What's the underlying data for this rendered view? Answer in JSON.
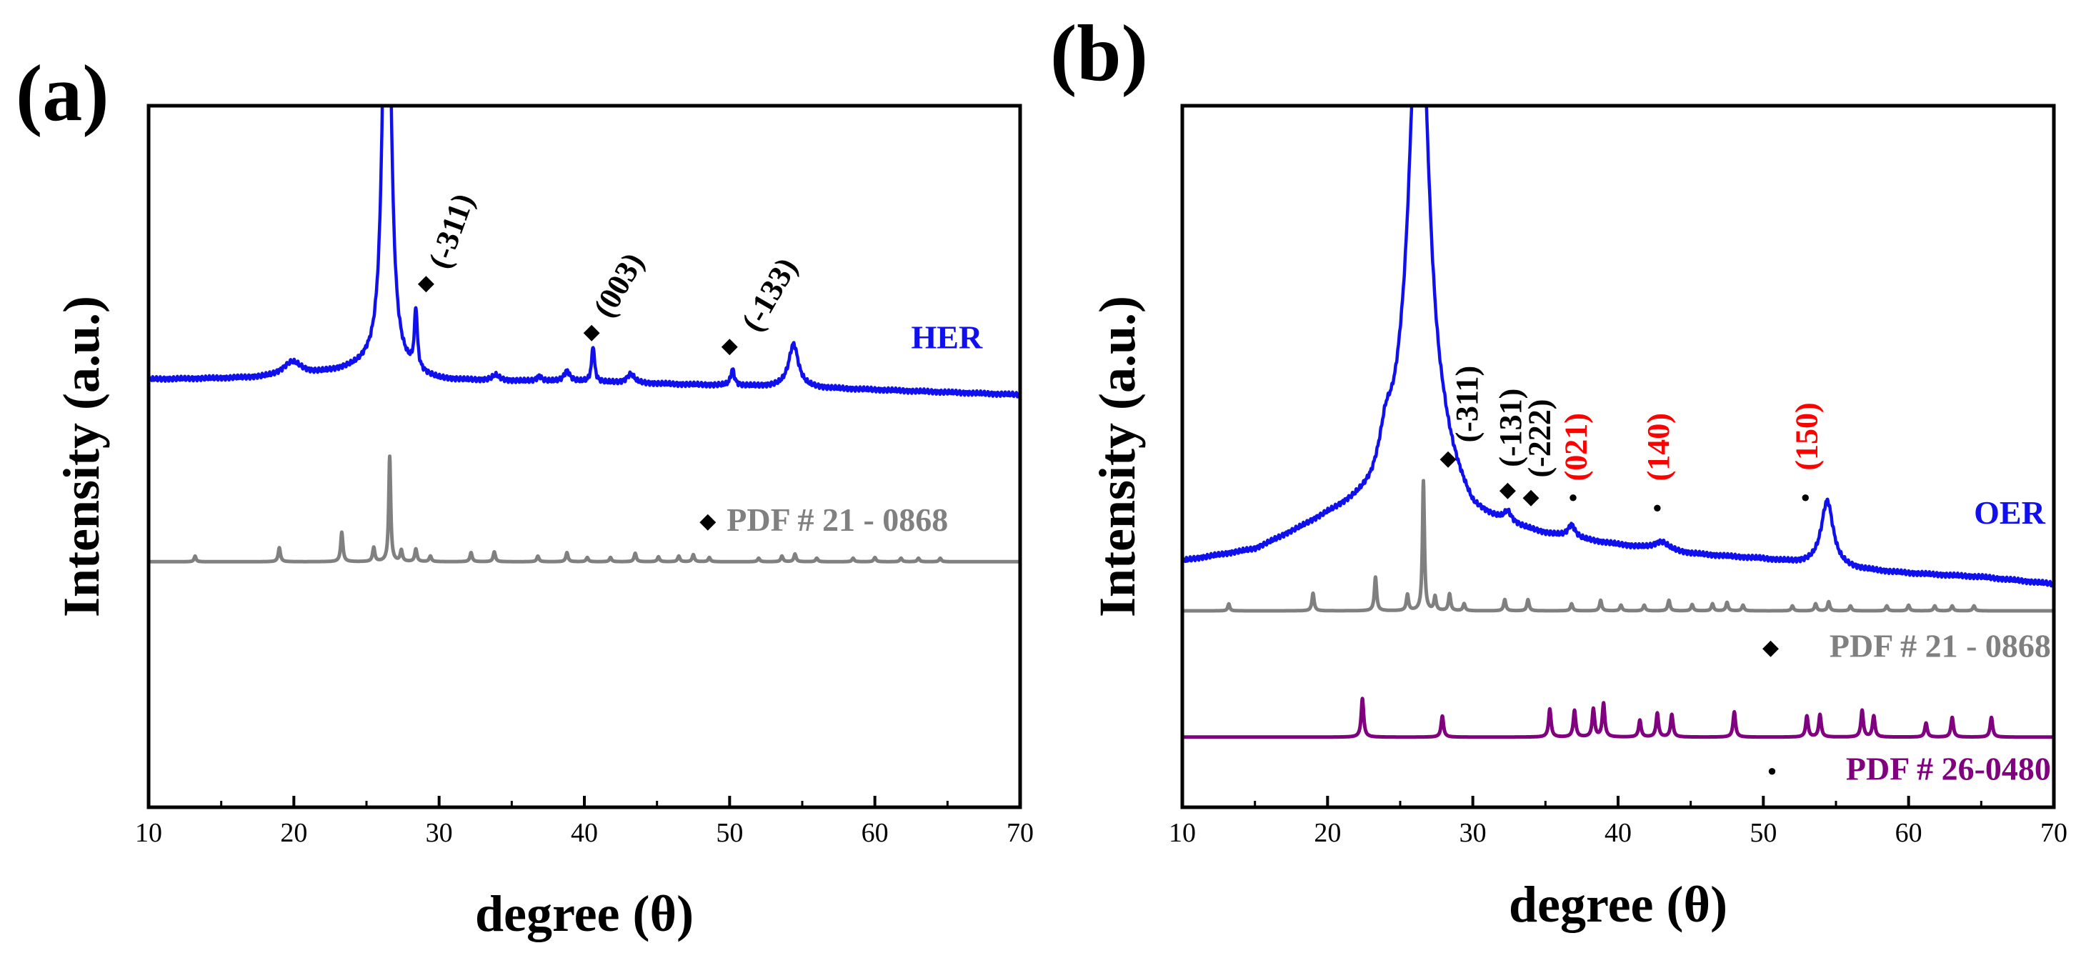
{
  "chart_data": [
    {
      "panel": "(a)",
      "type": "line",
      "xlabel": "degree (θ)",
      "ylabel": "Intensity (a.u.)",
      "xlim": [
        10,
        70
      ],
      "xticks": [
        10,
        20,
        30,
        40,
        50,
        60,
        70
      ],
      "xtick_labels": [
        "10",
        "20",
        "30",
        "40",
        "50",
        "60",
        "70"
      ],
      "ylim": [
        0,
        100
      ],
      "yticks_shown": false,
      "colors": {
        "HER": "#1010ee",
        "PDF 21-0868": "#808080",
        "marker": "#000000"
      },
      "series": [
        {
          "name": "HER",
          "label": "HER",
          "style": "xrd-profile",
          "baseline": [
            [
              10,
              61.0
            ],
            [
              20,
              61.2
            ],
            [
              25,
              62.5
            ],
            [
              30,
              60.8
            ],
            [
              40,
              60.6
            ],
            [
              50,
              60.1
            ],
            [
              60,
              59.5
            ],
            [
              70,
              58.8
            ]
          ],
          "peaks": [
            {
              "x": 19.9,
              "h": 2.2,
              "w": 0.8
            },
            {
              "x": 26.4,
              "h": 85,
              "w": 0.28
            },
            {
              "x": 28.4,
              "h": 8.5,
              "w": 0.12
            },
            {
              "x": 33.9,
              "h": 0.8,
              "w": 0.3
            },
            {
              "x": 36.9,
              "h": 0.7,
              "w": 0.2
            },
            {
              "x": 38.8,
              "h": 1.5,
              "w": 0.25
            },
            {
              "x": 40.6,
              "h": 5.2,
              "w": 0.12
            },
            {
              "x": 43.2,
              "h": 1.3,
              "w": 0.3
            },
            {
              "x": 50.2,
              "h": 2.3,
              "w": 0.15
            },
            {
              "x": 54.4,
              "h": 6.2,
              "w": 0.4
            }
          ]
        },
        {
          "name": "PDF 21-0868",
          "label": "PDF # 21 - 0868",
          "style": "xrd-profile",
          "baseline": [
            [
              10,
              35.0
            ],
            [
              70,
              35.0
            ]
          ],
          "peaks": [
            {
              "x": 13.2,
              "h": 0.8,
              "w": 0.08
            },
            {
              "x": 19.0,
              "h": 2.0,
              "w": 0.09
            },
            {
              "x": 23.3,
              "h": 4.2,
              "w": 0.09
            },
            {
              "x": 25.5,
              "h": 2.0,
              "w": 0.09
            },
            {
              "x": 26.6,
              "h": 15.0,
              "w": 0.08
            },
            {
              "x": 27.4,
              "h": 1.6,
              "w": 0.09
            },
            {
              "x": 28.4,
              "h": 1.8,
              "w": 0.09
            },
            {
              "x": 29.4,
              "h": 0.8,
              "w": 0.09
            },
            {
              "x": 32.2,
              "h": 1.3,
              "w": 0.09
            },
            {
              "x": 33.8,
              "h": 1.4,
              "w": 0.09
            },
            {
              "x": 36.8,
              "h": 0.8,
              "w": 0.09
            },
            {
              "x": 38.8,
              "h": 1.3,
              "w": 0.09
            },
            {
              "x": 40.2,
              "h": 0.6,
              "w": 0.09
            },
            {
              "x": 41.8,
              "h": 0.6,
              "w": 0.09
            },
            {
              "x": 43.5,
              "h": 1.2,
              "w": 0.09
            },
            {
              "x": 45.1,
              "h": 0.7,
              "w": 0.09
            },
            {
              "x": 46.5,
              "h": 0.8,
              "w": 0.09
            },
            {
              "x": 47.5,
              "h": 1.0,
              "w": 0.09
            },
            {
              "x": 48.6,
              "h": 0.6,
              "w": 0.09
            },
            {
              "x": 52.0,
              "h": 0.5,
              "w": 0.09
            },
            {
              "x": 53.6,
              "h": 0.8,
              "w": 0.09
            },
            {
              "x": 54.5,
              "h": 1.1,
              "w": 0.09
            },
            {
              "x": 56.0,
              "h": 0.5,
              "w": 0.09
            },
            {
              "x": 58.5,
              "h": 0.5,
              "w": 0.09
            },
            {
              "x": 60.0,
              "h": 0.6,
              "w": 0.09
            },
            {
              "x": 61.8,
              "h": 0.5,
              "w": 0.09
            },
            {
              "x": 63.0,
              "h": 0.5,
              "w": 0.09
            },
            {
              "x": 64.5,
              "h": 0.5,
              "w": 0.09
            }
          ]
        }
      ],
      "markers": [
        {
          "symbol": "◆",
          "x": 29.1,
          "y": 74.5,
          "color": "#000000"
        },
        {
          "symbol": "◆",
          "x": 40.5,
          "y": 67.5,
          "color": "#000000"
        },
        {
          "symbol": "◆",
          "x": 50.0,
          "y": 65.5,
          "color": "#000000"
        },
        {
          "symbol": "◆",
          "x": 48.5,
          "y": 40.5,
          "color": "#000000"
        }
      ],
      "annotations": [
        {
          "text": "(-311)",
          "x": 30.6,
          "y": 76.5,
          "color": "#000000",
          "rotation": 70
        },
        {
          "text": "(003)",
          "x": 41.8,
          "y": 69.5,
          "color": "#000000",
          "rotation": 60
        },
        {
          "text": "(-133)",
          "x": 52.0,
          "y": 67.5,
          "color": "#000000",
          "rotation": 60
        }
      ],
      "series_labels": [
        {
          "text": "HER",
          "x": 62.5,
          "y": 66.5,
          "color": "#1010ee",
          "anchor": "start"
        },
        {
          "text": "PDF # 21 - 0868",
          "x": 49.8,
          "y": 40.5,
          "color": "#808080",
          "anchor": "start"
        }
      ]
    },
    {
      "panel": "(b)",
      "type": "line",
      "xlabel": "degree (θ)",
      "ylabel": "Intensity (a.u.)",
      "xlim": [
        10,
        70
      ],
      "xticks": [
        10,
        20,
        30,
        40,
        50,
        60,
        70
      ],
      "xtick_labels": [
        "10",
        "20",
        "30",
        "40",
        "50",
        "60",
        "70"
      ],
      "ylim": [
        0,
        100
      ],
      "yticks_shown": false,
      "colors": {
        "OER": "#1010ee",
        "PDF 21-0868": "#808080",
        "PDF 26-0480": "#800080",
        "marker": "#000000",
        "red_label": "#ff0000"
      },
      "series": [
        {
          "name": "OER",
          "label": "OER",
          "style": "xrd-profile",
          "baseline": [
            [
              10,
              35.0
            ],
            [
              15,
              36.5
            ],
            [
              20,
              41.0
            ],
            [
              23,
              43.0
            ],
            [
              25,
              47.0
            ],
            [
              28,
              46.0
            ],
            [
              30,
              40.5
            ],
            [
              35,
              38.5
            ],
            [
              40,
              37.2
            ],
            [
              45,
              36.0
            ],
            [
              50,
              35.3
            ],
            [
              55,
              34.0
            ],
            [
              60,
              33.3
            ],
            [
              65,
              32.8
            ],
            [
              70,
              31.8
            ]
          ],
          "peaks": [
            {
              "x": 24.0,
              "h": 4.5,
              "w": 0.5
            },
            {
              "x": 26.3,
              "h": 75,
              "w": 0.8
            },
            {
              "x": 32.4,
              "h": 1.5,
              "w": 0.3
            },
            {
              "x": 36.8,
              "h": 1.8,
              "w": 0.3
            },
            {
              "x": 43.0,
              "h": 1.2,
              "w": 0.6
            },
            {
              "x": 54.4,
              "h": 9.5,
              "w": 0.5
            }
          ]
        },
        {
          "name": "PDF 21-0868",
          "label": "PDF # 21 - 0868",
          "style": "xrd-profile",
          "baseline": [
            [
              10,
              28.0
            ],
            [
              70,
              28.0
            ]
          ],
          "peaks": [
            {
              "x": 13.2,
              "h": 1.0,
              "w": 0.08
            },
            {
              "x": 19.0,
              "h": 2.5,
              "w": 0.09
            },
            {
              "x": 23.3,
              "h": 4.8,
              "w": 0.09
            },
            {
              "x": 25.5,
              "h": 2.3,
              "w": 0.09
            },
            {
              "x": 26.6,
              "h": 18.5,
              "w": 0.08
            },
            {
              "x": 27.4,
              "h": 2.0,
              "w": 0.09
            },
            {
              "x": 28.4,
              "h": 2.4,
              "w": 0.09
            },
            {
              "x": 29.4,
              "h": 1.0,
              "w": 0.09
            },
            {
              "x": 32.2,
              "h": 1.6,
              "w": 0.09
            },
            {
              "x": 33.8,
              "h": 1.6,
              "w": 0.09
            },
            {
              "x": 36.8,
              "h": 1.0,
              "w": 0.09
            },
            {
              "x": 38.8,
              "h": 1.5,
              "w": 0.09
            },
            {
              "x": 40.2,
              "h": 0.8,
              "w": 0.09
            },
            {
              "x": 41.8,
              "h": 0.8,
              "w": 0.09
            },
            {
              "x": 43.5,
              "h": 1.5,
              "w": 0.09
            },
            {
              "x": 45.1,
              "h": 0.9,
              "w": 0.09
            },
            {
              "x": 46.5,
              "h": 1.0,
              "w": 0.09
            },
            {
              "x": 47.5,
              "h": 1.2,
              "w": 0.09
            },
            {
              "x": 48.6,
              "h": 0.8,
              "w": 0.09
            },
            {
              "x": 52.0,
              "h": 0.7,
              "w": 0.09
            },
            {
              "x": 53.6,
              "h": 1.0,
              "w": 0.09
            },
            {
              "x": 54.5,
              "h": 1.3,
              "w": 0.09
            },
            {
              "x": 56.0,
              "h": 0.7,
              "w": 0.09
            },
            {
              "x": 58.5,
              "h": 0.7,
              "w": 0.09
            },
            {
              "x": 60.0,
              "h": 0.8,
              "w": 0.09
            },
            {
              "x": 61.8,
              "h": 0.7,
              "w": 0.09
            },
            {
              "x": 63.0,
              "h": 0.7,
              "w": 0.09
            },
            {
              "x": 64.5,
              "h": 0.7,
              "w": 0.09
            }
          ]
        },
        {
          "name": "PDF 26-0480",
          "label": "PDF # 26-0480",
          "style": "xrd-profile",
          "baseline": [
            [
              10,
              10.0
            ],
            [
              70,
              10.0
            ]
          ],
          "peaks": [
            {
              "x": 22.4,
              "h": 5.5,
              "w": 0.1
            },
            {
              "x": 27.9,
              "h": 3.0,
              "w": 0.1
            },
            {
              "x": 35.3,
              "h": 4.0,
              "w": 0.1
            },
            {
              "x": 37.0,
              "h": 3.8,
              "w": 0.1
            },
            {
              "x": 38.3,
              "h": 4.0,
              "w": 0.1
            },
            {
              "x": 39.0,
              "h": 4.8,
              "w": 0.1
            },
            {
              "x": 41.5,
              "h": 2.4,
              "w": 0.1
            },
            {
              "x": 42.7,
              "h": 3.4,
              "w": 0.1
            },
            {
              "x": 43.7,
              "h": 3.2,
              "w": 0.1
            },
            {
              "x": 48.0,
              "h": 3.6,
              "w": 0.1
            },
            {
              "x": 53.0,
              "h": 3.0,
              "w": 0.1
            },
            {
              "x": 53.9,
              "h": 3.2,
              "w": 0.1
            },
            {
              "x": 56.8,
              "h": 3.8,
              "w": 0.1
            },
            {
              "x": 57.6,
              "h": 3.0,
              "w": 0.1
            },
            {
              "x": 61.2,
              "h": 2.0,
              "w": 0.1
            },
            {
              "x": 63.0,
              "h": 2.8,
              "w": 0.1
            },
            {
              "x": 65.7,
              "h": 2.8,
              "w": 0.1
            }
          ]
        }
      ],
      "markers": [
        {
          "symbol": "◆",
          "x": 28.3,
          "y": 49.5,
          "color": "#000000"
        },
        {
          "symbol": "◆",
          "x": 32.4,
          "y": 45.0,
          "color": "#000000"
        },
        {
          "symbol": "◆",
          "x": 34.0,
          "y": 44.0,
          "color": "#000000"
        },
        {
          "symbol": "●",
          "x": 36.9,
          "y": 44.0,
          "color": "#000000"
        },
        {
          "symbol": "●",
          "x": 42.7,
          "y": 42.5,
          "color": "#000000"
        },
        {
          "symbol": "●",
          "x": 52.9,
          "y": 44.0,
          "color": "#000000"
        },
        {
          "symbol": "◆",
          "x": 50.5,
          "y": 22.5,
          "color": "#000000"
        },
        {
          "symbol": "●",
          "x": 50.6,
          "y": 5.0,
          "color": "#000000"
        }
      ],
      "annotations": [
        {
          "text": "(-311)",
          "x": 30.3,
          "y": 52.0,
          "color": "#000000",
          "rotation": 90
        },
        {
          "text": "(-131)",
          "x": 33.3,
          "y": 48.5,
          "color": "#000000",
          "rotation": 90
        },
        {
          "text": "(-222)",
          "x": 35.3,
          "y": 47.0,
          "color": "#000000",
          "rotation": 90
        },
        {
          "text": "(021)",
          "x": 37.8,
          "y": 46.5,
          "color": "#ff0000",
          "rotation": 90
        },
        {
          "text": "(140)",
          "x": 43.5,
          "y": 46.5,
          "color": "#ff0000",
          "rotation": 90
        },
        {
          "text": "(150)",
          "x": 53.7,
          "y": 48.0,
          "color": "#ff0000",
          "rotation": 90
        }
      ],
      "series_labels": [
        {
          "text": "OER",
          "x": 69.4,
          "y": 41.5,
          "color": "#1010ee",
          "anchor": "end"
        },
        {
          "text": "PDF # 21 - 0868",
          "x": 69.8,
          "y": 22.5,
          "color": "#808080",
          "anchor": "end"
        },
        {
          "text": "PDF # 26-0480",
          "x": 69.8,
          "y": 5.0,
          "color": "#800080",
          "anchor": "end"
        }
      ]
    }
  ]
}
